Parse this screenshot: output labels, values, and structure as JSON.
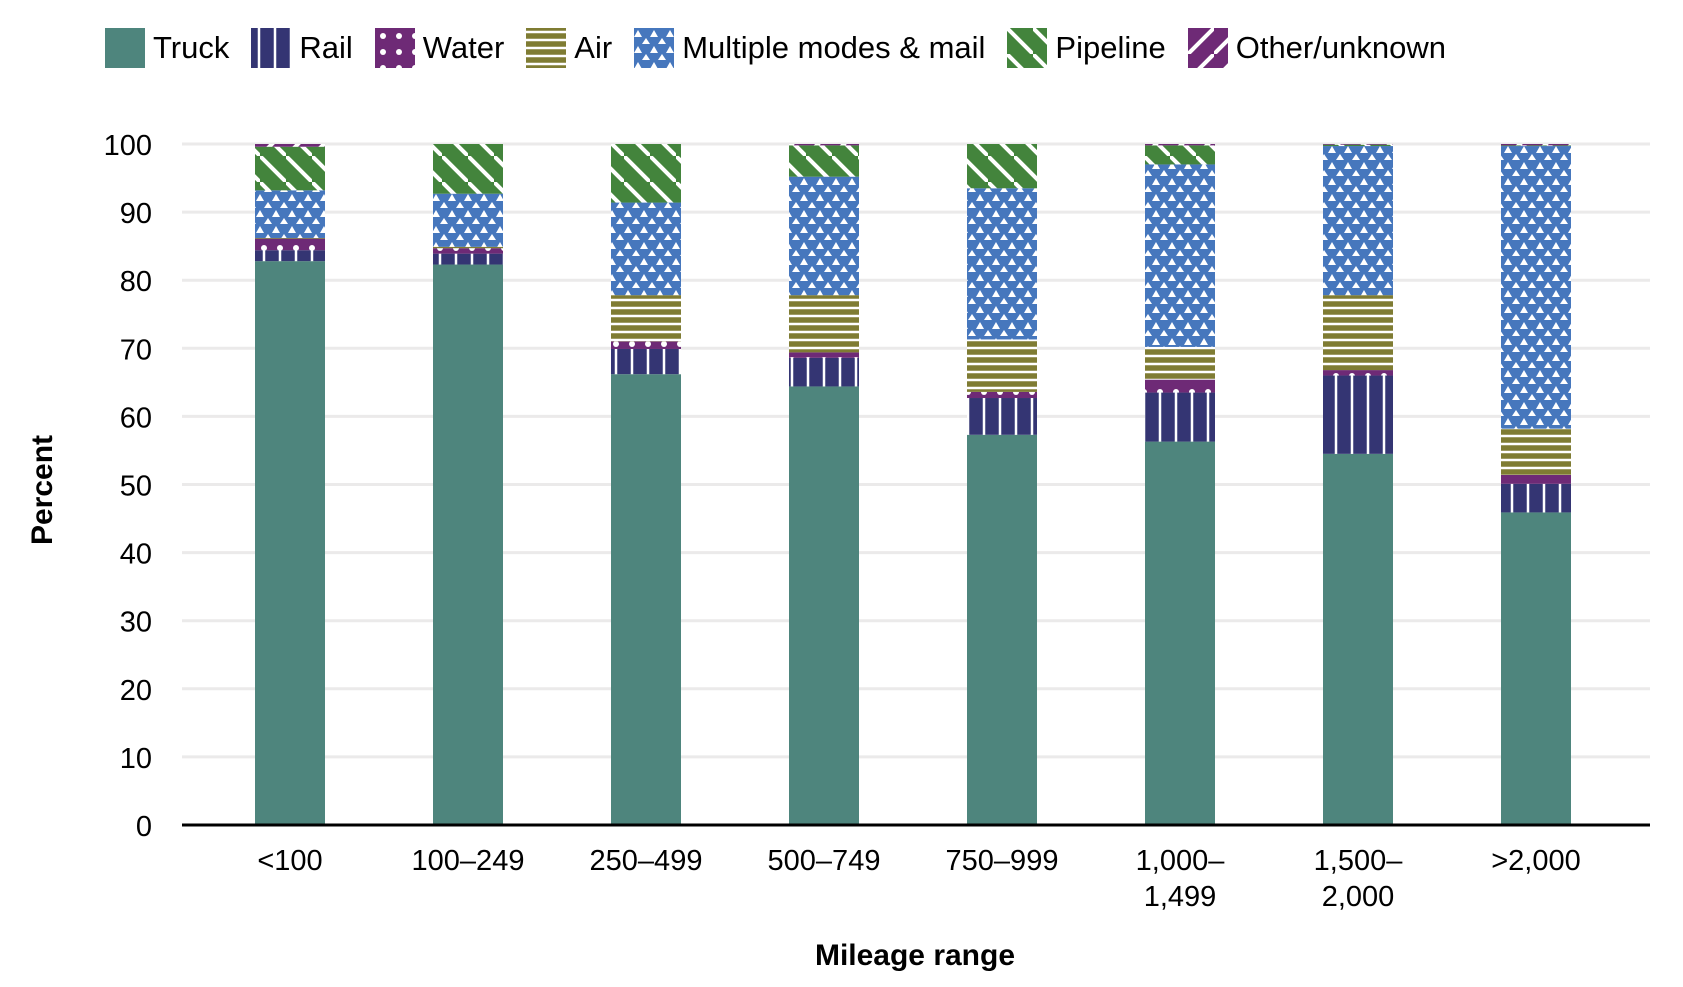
{
  "chart_data": {
    "type": "bar",
    "stacked": true,
    "title": "",
    "xlabel": "Mileage range",
    "ylabel": "Percent",
    "ylim": [
      0,
      100
    ],
    "yticks": [
      0,
      10,
      20,
      30,
      40,
      50,
      60,
      70,
      80,
      90,
      100
    ],
    "grid": true,
    "legend_position": "top",
    "categories": [
      "<100",
      "100–249",
      "250–499",
      "500–749",
      "750–999",
      "1,000–1,499",
      "1,500–2,000",
      ">2,000"
    ],
    "category_lines": [
      [
        "<100"
      ],
      [
        "100–249"
      ],
      [
        "250–499"
      ],
      [
        "500–749"
      ],
      [
        "750–999"
      ],
      [
        "1,000–",
        "1,499"
      ],
      [
        "1,500–",
        "2,000"
      ],
      [
        ">2,000"
      ]
    ],
    "series": [
      {
        "name": "Truck",
        "color": "#4e857d",
        "pattern": "solid",
        "values": [
          82.8,
          82.3,
          66.2,
          64.4,
          57.3,
          56.3,
          54.5,
          45.9
        ]
      },
      {
        "name": "Rail",
        "color": "#343573",
        "pattern": "vlines",
        "values": [
          1.6,
          1.6,
          3.7,
          4.2,
          5.4,
          7.2,
          11.5,
          4.2
        ]
      },
      {
        "name": "Water",
        "color": "#6e2a76",
        "pattern": "dots",
        "values": [
          1.7,
          0.8,
          1.1,
          0.8,
          0.9,
          1.9,
          0.8,
          1.3
        ]
      },
      {
        "name": "Air",
        "color": "#7f7c33",
        "pattern": "hlines",
        "values": [
          0.1,
          0.2,
          6.8,
          8.4,
          7.7,
          4.8,
          11.0,
          6.8
        ]
      },
      {
        "name": "Multiple modes & mail",
        "color": "#4677bd",
        "pattern": "triangles",
        "values": [
          7.0,
          7.8,
          13.6,
          17.4,
          22.2,
          26.8,
          21.9,
          41.5
        ]
      },
      {
        "name": "Pipeline",
        "color": "#43843c",
        "pattern": "diag",
        "values": [
          6.4,
          7.3,
          8.6,
          4.6,
          6.5,
          2.8,
          0.2,
          0.1
        ]
      },
      {
        "name": "Other/unknown",
        "color": "#6e2a76",
        "pattern": "diagup",
        "values": [
          0.4,
          0.0,
          0.0,
          0.2,
          0.0,
          0.2,
          0.1,
          0.2
        ]
      }
    ]
  }
}
